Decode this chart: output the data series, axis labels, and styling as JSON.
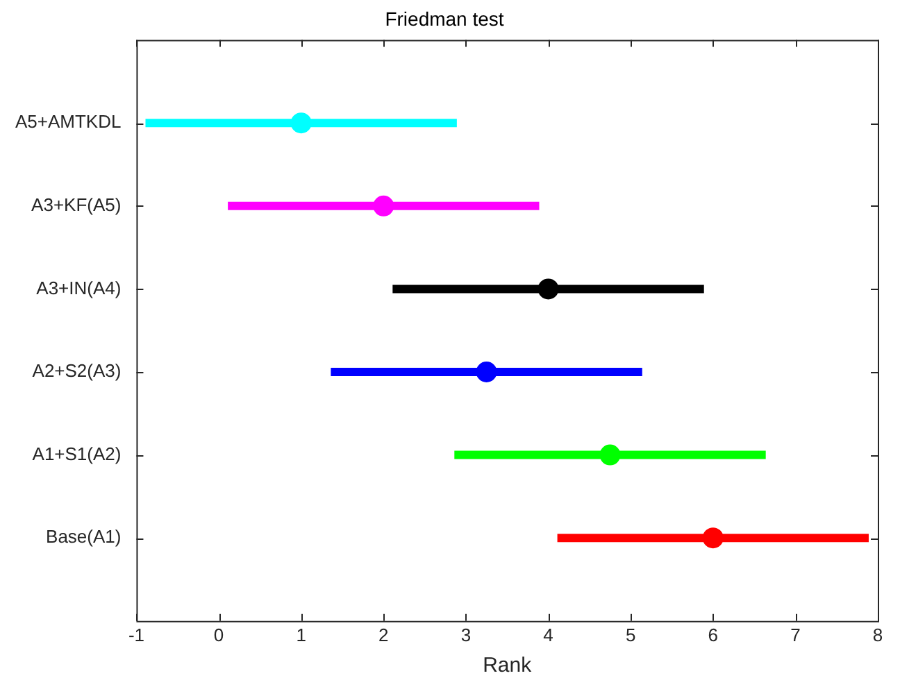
{
  "chart_data": {
    "type": "scatter",
    "title": "Friedman test",
    "xlabel": "Rank",
    "orientation": "horizontal",
    "categories": [
      "A5+AMTKDL",
      "A3+KF(A5)",
      "A3+IN(A4)",
      "A2+S2(A3)",
      "A1+S1(A2)",
      "Base(A1)"
    ],
    "values": [
      1.0,
      2.0,
      4.0,
      3.25,
      4.75,
      6.0
    ],
    "errors": [
      1.89,
      1.89,
      1.89,
      1.89,
      1.89,
      1.89
    ],
    "colors": [
      "#00ffff",
      "#ff00ff",
      "#000000",
      "#0000ff",
      "#00ff00",
      "#ff0000"
    ],
    "xlim": [
      -1,
      8
    ],
    "xticks": [
      -1,
      0,
      1,
      2,
      3,
      4,
      5,
      6,
      7,
      8
    ],
    "marker": "circle",
    "grid": false,
    "legend": false
  }
}
